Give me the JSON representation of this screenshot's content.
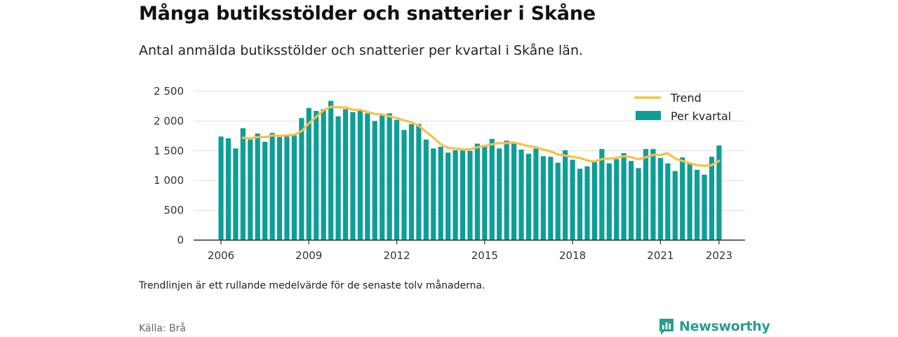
{
  "header": {
    "title": "Många butiksstölder och snatterier i Skåne",
    "subtitle": "Antal anmälda butiksstölder och snatterier per kvartal i Skåne län."
  },
  "footer": {
    "note": "Trendlinjen är ett rullande medelvärde för de senaste tolv månaderna.",
    "source": "Källa: Brå",
    "brand": "Newsworthy"
  },
  "colors": {
    "bars": "#0e9e96",
    "trend": "#f6c04c",
    "grid": "#dddddd",
    "axis": "#333333",
    "brand": "#2a9d8f"
  },
  "chart_data": {
    "type": "bar",
    "title": "Många butiksstölder och snatterier i Skåne",
    "xlabel": "",
    "ylabel": "",
    "ylim": [
      0,
      2500
    ],
    "yticks": [
      0,
      500,
      1000,
      1500,
      2000,
      2500
    ],
    "ytick_labels": [
      "0",
      "500",
      "1 000",
      "1 500",
      "2 000",
      "2 500"
    ],
    "xticks": [
      "2006",
      "2009",
      "2012",
      "2015",
      "2018",
      "2021",
      "2023"
    ],
    "grid": true,
    "legend_position": "top-right",
    "x_start_year": 2006,
    "series": [
      {
        "name": "Per kvartal",
        "type": "bar",
        "values": [
          1740,
          1710,
          1540,
          1880,
          1690,
          1790,
          1650,
          1800,
          1730,
          1740,
          1760,
          2050,
          2220,
          2170,
          2200,
          2340,
          2080,
          2200,
          2150,
          2170,
          2130,
          2000,
          2120,
          2130,
          2020,
          1850,
          1950,
          1950,
          1690,
          1540,
          1570,
          1470,
          1510,
          1530,
          1500,
          1620,
          1600,
          1700,
          1540,
          1670,
          1620,
          1520,
          1450,
          1540,
          1410,
          1400,
          1300,
          1510,
          1350,
          1200,
          1240,
          1310,
          1530,
          1290,
          1360,
          1460,
          1330,
          1210,
          1530,
          1530,
          1380,
          1290,
          1160,
          1390,
          1290,
          1180,
          1100,
          1400,
          1590
        ]
      },
      {
        "name": "Trend",
        "type": "line",
        "values": [
          null,
          null,
          null,
          1720,
          1710,
          1730,
          1730,
          1760,
          1750,
          1760,
          1770,
          1830,
          1960,
          2070,
          2180,
          2240,
          2230,
          2230,
          2190,
          2190,
          2150,
          2120,
          2110,
          2080,
          2050,
          2010,
          1980,
          1920,
          1820,
          1720,
          1610,
          1550,
          1540,
          1520,
          1530,
          1560,
          1580,
          1610,
          1630,
          1630,
          1640,
          1610,
          1580,
          1560,
          1520,
          1490,
          1440,
          1420,
          1400,
          1380,
          1340,
          1320,
          1360,
          1370,
          1380,
          1410,
          1390,
          1360,
          1390,
          1430,
          1430,
          1460,
          1370,
          1330,
          1290,
          1260,
          1250,
          1260,
          1330
        ]
      }
    ]
  }
}
